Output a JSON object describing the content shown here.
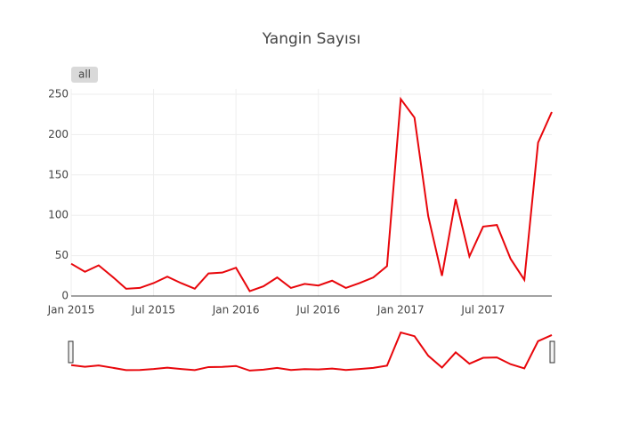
{
  "chart_data": {
    "type": "line",
    "title": "Yangin Sayısı",
    "button": "all",
    "x": [
      "2015-01",
      "2015-02",
      "2015-03",
      "2015-04",
      "2015-05",
      "2015-06",
      "2015-07",
      "2015-08",
      "2015-09",
      "2015-10",
      "2015-11",
      "2015-12",
      "2016-01",
      "2016-02",
      "2016-03",
      "2016-04",
      "2016-05",
      "2016-06",
      "2016-07",
      "2016-08",
      "2016-09",
      "2016-10",
      "2016-11",
      "2016-12",
      "2017-01",
      "2017-02",
      "2017-03",
      "2017-04",
      "2017-05",
      "2017-06",
      "2017-07",
      "2017-08",
      "2017-09",
      "2017-10",
      "2017-11",
      "2017-12"
    ],
    "series": [
      {
        "color": "#e8060b",
        "values": [
          40,
          30,
          38,
          24,
          9,
          10,
          16,
          24,
          16,
          9,
          28,
          29,
          35,
          6,
          12,
          23,
          10,
          15,
          13,
          19,
          10,
          16,
          23,
          37,
          244,
          221,
          99,
          25,
          120,
          49,
          86,
          88,
          46,
          20,
          190,
          228
        ]
      }
    ],
    "xlim": [
      "2015-01",
      "2017-12"
    ],
    "xticks": [
      {
        "value": "2015-01",
        "label": "Jan 2015"
      },
      {
        "value": "2015-07",
        "label": "Jul 2015"
      },
      {
        "value": "2016-01",
        "label": "Jan 2016"
      },
      {
        "value": "2016-07",
        "label": "Jul 2016"
      },
      {
        "value": "2017-01",
        "label": "Jan 2017"
      },
      {
        "value": "2017-07",
        "label": "Jul 2017"
      }
    ],
    "ylim": [
      0,
      250
    ],
    "yticks": [
      0,
      50,
      100,
      150,
      200,
      250
    ],
    "grid": true,
    "range_slider": true
  }
}
